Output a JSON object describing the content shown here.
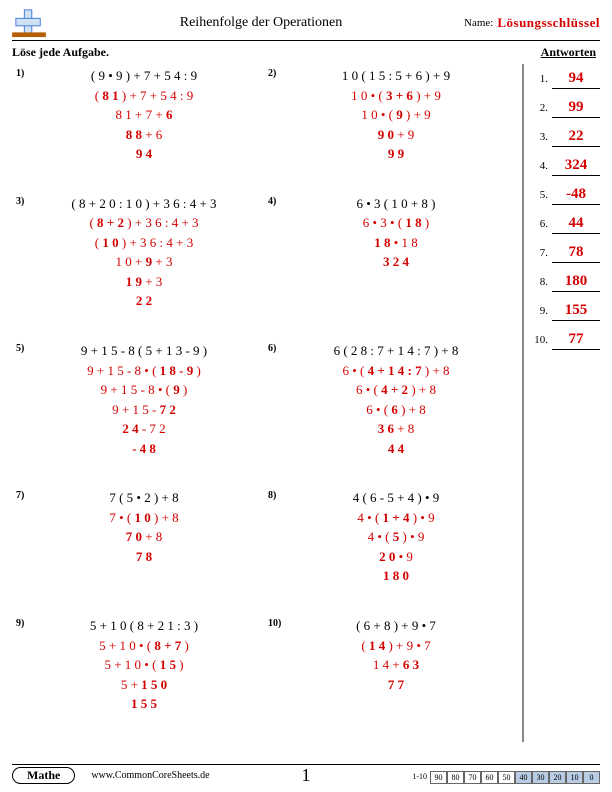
{
  "header": {
    "title": "Reihenfolge der Operationen",
    "name_label": "Name:",
    "key_label": "Lösungsschlüssel"
  },
  "subhead": {
    "instruction": "Löse jede Aufgabe.",
    "answers_label": "Antworten"
  },
  "problems": [
    {
      "n": "1)",
      "lines": [
        {
          "cls": "q",
          "html": "( 9 • 9 ) + 7 + 5 4 : 9"
        },
        {
          "cls": "step",
          "html": "( <b>8 1</b> ) + 7 + 5 4 : 9"
        },
        {
          "cls": "step",
          "html": "8 1 + 7 + <b>6</b>"
        },
        {
          "cls": "step",
          "html": "<b>8 8</b> + 6"
        },
        {
          "cls": "final",
          "html": "<b>9 4</b>"
        }
      ]
    },
    {
      "n": "2)",
      "lines": [
        {
          "cls": "q",
          "html": "1 0 ( 1 5 : 5 + 6 ) + 9"
        },
        {
          "cls": "step",
          "html": "1 0 • ( <b>3 + 6</b> ) + 9"
        },
        {
          "cls": "step",
          "html": "1 0 • ( <b>9</b> ) + 9"
        },
        {
          "cls": "step",
          "html": "<b>9 0</b> + 9"
        },
        {
          "cls": "final",
          "html": "<b>9 9</b>"
        }
      ]
    },
    {
      "n": "3)",
      "lines": [
        {
          "cls": "q",
          "html": "( 8 + 2 0 : 1 0 ) + 3 6 : 4 + 3"
        },
        {
          "cls": "step",
          "html": "( <b>8 + 2</b> ) + 3 6 : 4 + 3"
        },
        {
          "cls": "step",
          "html": "( <b>1 0</b> ) + 3 6 : 4 + 3"
        },
        {
          "cls": "step",
          "html": "1 0 + <b>9</b> + 3"
        },
        {
          "cls": "step",
          "html": "<b>1 9</b> + 3"
        },
        {
          "cls": "final",
          "html": "<b>2 2</b>"
        }
      ]
    },
    {
      "n": "4)",
      "lines": [
        {
          "cls": "q",
          "html": "6 • 3 ( 1 0 + 8 )"
        },
        {
          "cls": "step",
          "html": "6 • 3 • ( <b>1 8</b> )"
        },
        {
          "cls": "step",
          "html": "<b>1 8</b> • 1 8"
        },
        {
          "cls": "final",
          "html": "<b>3 2 4</b>"
        }
      ]
    },
    {
      "n": "5)",
      "lines": [
        {
          "cls": "q",
          "html": "9 + 1 5 - 8 ( 5 + 1 3 - 9 )"
        },
        {
          "cls": "step",
          "html": "9 + 1 5 - 8 • ( <b>1 8 - 9</b> )"
        },
        {
          "cls": "step",
          "html": "9 + 1 5 - 8 • ( <b>9</b> )"
        },
        {
          "cls": "step",
          "html": "9 + 1 5 - <b>7 2</b>"
        },
        {
          "cls": "step",
          "html": "<b>2 4</b> - 7 2"
        },
        {
          "cls": "final",
          "html": "<b>- 4 8</b>"
        }
      ]
    },
    {
      "n": "6)",
      "lines": [
        {
          "cls": "q",
          "html": "6 ( 2 8 : 7 + 1 4 : 7 ) + 8"
        },
        {
          "cls": "step",
          "html": "6 • ( <b>4 + 1 4 : 7</b> ) + 8"
        },
        {
          "cls": "step",
          "html": "6 • ( <b>4 + 2</b> ) + 8"
        },
        {
          "cls": "step",
          "html": "6 • ( <b>6</b> ) + 8"
        },
        {
          "cls": "step",
          "html": "<b>3 6</b> + 8"
        },
        {
          "cls": "final",
          "html": "<b>4 4</b>"
        }
      ]
    },
    {
      "n": "7)",
      "lines": [
        {
          "cls": "q",
          "html": "7 ( 5 • 2 ) + 8"
        },
        {
          "cls": "step",
          "html": "7 • ( <b>1 0</b> ) + 8"
        },
        {
          "cls": "step",
          "html": "<b>7 0</b> + 8"
        },
        {
          "cls": "final",
          "html": "<b>7 8</b>"
        }
      ]
    },
    {
      "n": "8)",
      "lines": [
        {
          "cls": "q",
          "html": "4 ( 6 - 5 + 4 ) • 9"
        },
        {
          "cls": "step",
          "html": "4 • ( <b>1 + 4</b> ) • 9"
        },
        {
          "cls": "step",
          "html": "4 • ( <b>5</b> ) • 9"
        },
        {
          "cls": "step",
          "html": "<b>2 0</b> • 9"
        },
        {
          "cls": "final",
          "html": "<b>1 8 0</b>"
        }
      ]
    },
    {
      "n": "9)",
      "lines": [
        {
          "cls": "q",
          "html": "5 + 1 0 ( 8 + 2 1 : 3 )"
        },
        {
          "cls": "step",
          "html": "5 + 1 0 • ( <b>8 + 7</b> )"
        },
        {
          "cls": "step",
          "html": "5 + 1 0 • ( <b>1 5</b> )"
        },
        {
          "cls": "step",
          "html": "5 + <b>1 5 0</b>"
        },
        {
          "cls": "final",
          "html": "<b>1 5 5</b>"
        }
      ]
    },
    {
      "n": "10)",
      "lines": [
        {
          "cls": "q",
          "html": "( 6 + 8 ) + 9 • 7"
        },
        {
          "cls": "step",
          "html": "( <b>1 4</b> ) + 9 • 7"
        },
        {
          "cls": "step",
          "html": "1 4 + <b>6 3</b>"
        },
        {
          "cls": "final",
          "html": "<b>7 7</b>"
        }
      ]
    }
  ],
  "answers": [
    "94",
    "99",
    "22",
    "324",
    "-48",
    "44",
    "78",
    "180",
    "155",
    "77"
  ],
  "footer": {
    "subject": "Mathe",
    "url": "www.CommonCoreSheets.de",
    "page": "1",
    "score_label": "1-10",
    "scores": [
      "90",
      "80",
      "70",
      "60",
      "50",
      "40",
      "30",
      "20",
      "10",
      "0"
    ],
    "shade_from": 5
  }
}
